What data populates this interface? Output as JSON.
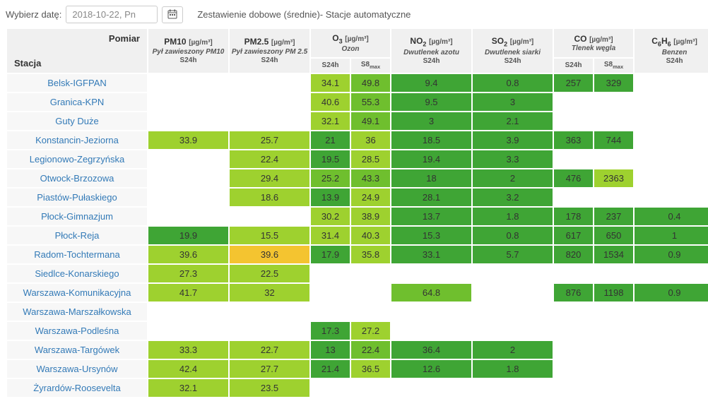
{
  "toolbar": {
    "label": "Wybierz datę:",
    "date_value": "2018-10-22, Pn",
    "calendar_icon": "calendar-icon",
    "title": "Zestawienie dobowe (średnie)- Stacje automatyczne"
  },
  "header": {
    "pomiar": "Pomiar",
    "stacja": "Stacja"
  },
  "pollutants": [
    {
      "key": "pm10",
      "name_html": "PM10",
      "unit_html": "[µg/m³]",
      "sub": "Pył zawieszony PM10",
      "aggs": [
        "S24h"
      ]
    },
    {
      "key": "pm25",
      "name_html": "PM2.5",
      "unit_html": "[µg/m³]",
      "sub": "Pył zawieszony PM 2.5",
      "aggs": [
        "S24h"
      ]
    },
    {
      "key": "o3",
      "name_html": "O<sub>3</sub>",
      "unit_html": "[µg/m³]",
      "sub": "Ozon",
      "aggs": [
        "S24h",
        "S8<sub>max</sub>"
      ]
    },
    {
      "key": "no2",
      "name_html": "NO<sub>2</sub>",
      "unit_html": "[µg/m³]",
      "sub": "Dwutlenek azotu",
      "aggs": [
        "S24h"
      ]
    },
    {
      "key": "so2",
      "name_html": "SO<sub>2</sub>",
      "unit_html": "[µg/m³]",
      "sub": "Dwutlenek siarki",
      "aggs": [
        "S24h"
      ]
    },
    {
      "key": "co",
      "name_html": "CO",
      "unit_html": "[µg/m³]",
      "sub": "Tlenek węgla",
      "aggs": [
        "S24h",
        "S8<sub>max</sub>"
      ]
    },
    {
      "key": "c6h6",
      "name_html": "C<sub>6</sub>H<sub>6</sub>",
      "unit_html": "[µg/m³]",
      "sub": "Benzen",
      "aggs": [
        "S24h"
      ]
    }
  ],
  "colors": {
    "dark_green": "#3fa535",
    "mid_green": "#6fbf2e",
    "lime": "#9ed12f",
    "orange": "#f4c430",
    "header_bg": "#f0f0f0",
    "station_bg": "#f7f7f7",
    "link": "#337ab7"
  },
  "layout": {
    "col_station_w": 200,
    "col_single_w": 115,
    "col_half_w": 57
  },
  "stations": [
    {
      "name": "Belsk-IGFPAN",
      "cells": {
        "o3": [
          {
            "v": "34.1",
            "c": "lime"
          },
          {
            "v": "49.8",
            "c": "mid_green"
          }
        ],
        "no2": [
          {
            "v": "9.4",
            "c": "dark_green"
          }
        ],
        "so2": [
          {
            "v": "0.8",
            "c": "dark_green"
          }
        ],
        "co": [
          {
            "v": "257",
            "c": "dark_green"
          },
          {
            "v": "329",
            "c": "dark_green"
          }
        ]
      }
    },
    {
      "name": "Granica-KPN",
      "cells": {
        "o3": [
          {
            "v": "40.6",
            "c": "lime"
          },
          {
            "v": "55.3",
            "c": "mid_green"
          }
        ],
        "no2": [
          {
            "v": "9.5",
            "c": "dark_green"
          }
        ],
        "so2": [
          {
            "v": "3",
            "c": "dark_green"
          }
        ]
      }
    },
    {
      "name": "Guty Duże",
      "cells": {
        "o3": [
          {
            "v": "32.1",
            "c": "lime"
          },
          {
            "v": "49.1",
            "c": "mid_green"
          }
        ],
        "no2": [
          {
            "v": "3",
            "c": "dark_green"
          }
        ],
        "so2": [
          {
            "v": "2.1",
            "c": "dark_green"
          }
        ]
      }
    },
    {
      "name": "Konstancin-Jeziorna",
      "cells": {
        "pm10": [
          {
            "v": "33.9",
            "c": "lime"
          }
        ],
        "pm25": [
          {
            "v": "25.7",
            "c": "lime"
          }
        ],
        "o3": [
          {
            "v": "21",
            "c": "dark_green"
          },
          {
            "v": "36",
            "c": "lime"
          }
        ],
        "no2": [
          {
            "v": "18.5",
            "c": "dark_green"
          }
        ],
        "so2": [
          {
            "v": "3.9",
            "c": "dark_green"
          }
        ],
        "co": [
          {
            "v": "363",
            "c": "dark_green"
          },
          {
            "v": "744",
            "c": "dark_green"
          }
        ]
      }
    },
    {
      "name": "Legionowo-Zegrzyńska",
      "cells": {
        "pm25": [
          {
            "v": "22.4",
            "c": "lime"
          }
        ],
        "o3": [
          {
            "v": "19.5",
            "c": "dark_green"
          },
          {
            "v": "28.5",
            "c": "lime"
          }
        ],
        "no2": [
          {
            "v": "19.4",
            "c": "dark_green"
          }
        ],
        "so2": [
          {
            "v": "3.3",
            "c": "dark_green"
          }
        ]
      }
    },
    {
      "name": "Otwock-Brzozowa",
      "cells": {
        "pm25": [
          {
            "v": "29.4",
            "c": "lime"
          }
        ],
        "o3": [
          {
            "v": "25.2",
            "c": "mid_green"
          },
          {
            "v": "43.3",
            "c": "mid_green"
          }
        ],
        "no2": [
          {
            "v": "18",
            "c": "dark_green"
          }
        ],
        "so2": [
          {
            "v": "2",
            "c": "dark_green"
          }
        ],
        "co": [
          {
            "v": "476",
            "c": "dark_green"
          },
          {
            "v": "2363",
            "c": "lime"
          }
        ]
      }
    },
    {
      "name": "Piastów-Pułaskiego",
      "cells": {
        "pm25": [
          {
            "v": "18.6",
            "c": "lime"
          }
        ],
        "o3": [
          {
            "v": "13.9",
            "c": "dark_green"
          },
          {
            "v": "24.9",
            "c": "lime"
          }
        ],
        "no2": [
          {
            "v": "28.1",
            "c": "dark_green"
          }
        ],
        "so2": [
          {
            "v": "3.2",
            "c": "dark_green"
          }
        ]
      }
    },
    {
      "name": "Płock-Gimnazjum",
      "cells": {
        "o3": [
          {
            "v": "30.2",
            "c": "lime"
          },
          {
            "v": "38.9",
            "c": "lime"
          }
        ],
        "no2": [
          {
            "v": "13.7",
            "c": "dark_green"
          }
        ],
        "so2": [
          {
            "v": "1.8",
            "c": "dark_green"
          }
        ],
        "co": [
          {
            "v": "178",
            "c": "dark_green"
          },
          {
            "v": "237",
            "c": "dark_green"
          }
        ],
        "c6h6": [
          {
            "v": "0.4",
            "c": "dark_green"
          }
        ]
      }
    },
    {
      "name": "Płock-Reja",
      "cells": {
        "pm10": [
          {
            "v": "19.9",
            "c": "dark_green"
          }
        ],
        "pm25": [
          {
            "v": "15.5",
            "c": "lime"
          }
        ],
        "o3": [
          {
            "v": "31.4",
            "c": "lime"
          },
          {
            "v": "40.3",
            "c": "lime"
          }
        ],
        "no2": [
          {
            "v": "15.3",
            "c": "dark_green"
          }
        ],
        "so2": [
          {
            "v": "0.8",
            "c": "dark_green"
          }
        ],
        "co": [
          {
            "v": "617",
            "c": "dark_green"
          },
          {
            "v": "650",
            "c": "dark_green"
          }
        ],
        "c6h6": [
          {
            "v": "1",
            "c": "dark_green"
          }
        ]
      }
    },
    {
      "name": "Radom-Tochtermana",
      "cells": {
        "pm10": [
          {
            "v": "39.6",
            "c": "lime"
          }
        ],
        "pm25": [
          {
            "v": "39.6",
            "c": "orange"
          }
        ],
        "o3": [
          {
            "v": "17.9",
            "c": "dark_green"
          },
          {
            "v": "35.8",
            "c": "lime"
          }
        ],
        "no2": [
          {
            "v": "33.1",
            "c": "dark_green"
          }
        ],
        "so2": [
          {
            "v": "5.7",
            "c": "dark_green"
          }
        ],
        "co": [
          {
            "v": "820",
            "c": "dark_green"
          },
          {
            "v": "1534",
            "c": "dark_green"
          }
        ],
        "c6h6": [
          {
            "v": "0.9",
            "c": "dark_green"
          }
        ]
      }
    },
    {
      "name": "Siedlce-Konarskiego",
      "cells": {
        "pm10": [
          {
            "v": "27.3",
            "c": "lime"
          }
        ],
        "pm25": [
          {
            "v": "22.5",
            "c": "lime"
          }
        ]
      }
    },
    {
      "name": "Warszawa-Komunikacyjna",
      "cells": {
        "pm10": [
          {
            "v": "41.7",
            "c": "lime"
          }
        ],
        "pm25": [
          {
            "v": "32",
            "c": "lime"
          }
        ],
        "no2": [
          {
            "v": "64.8",
            "c": "mid_green"
          }
        ],
        "co": [
          {
            "v": "876",
            "c": "dark_green"
          },
          {
            "v": "1198",
            "c": "dark_green"
          }
        ],
        "c6h6": [
          {
            "v": "0.9",
            "c": "dark_green"
          }
        ]
      }
    },
    {
      "name": "Warszawa-Marszałkowska",
      "cells": {}
    },
    {
      "name": "Warszawa-Podleśna",
      "cells": {
        "o3": [
          {
            "v": "17.3",
            "c": "dark_green"
          },
          {
            "v": "27.2",
            "c": "lime"
          }
        ]
      }
    },
    {
      "name": "Warszawa-Targówek",
      "cells": {
        "pm10": [
          {
            "v": "33.3",
            "c": "lime"
          }
        ],
        "pm25": [
          {
            "v": "22.7",
            "c": "lime"
          }
        ],
        "o3": [
          {
            "v": "13",
            "c": "dark_green"
          },
          {
            "v": "22.4",
            "c": "mid_green"
          }
        ],
        "no2": [
          {
            "v": "36.4",
            "c": "dark_green"
          }
        ],
        "so2": [
          {
            "v": "2",
            "c": "dark_green"
          }
        ]
      }
    },
    {
      "name": "Warszawa-Ursynów",
      "cells": {
        "pm10": [
          {
            "v": "42.4",
            "c": "lime"
          }
        ],
        "pm25": [
          {
            "v": "27.7",
            "c": "lime"
          }
        ],
        "o3": [
          {
            "v": "21.4",
            "c": "dark_green"
          },
          {
            "v": "36.5",
            "c": "lime"
          }
        ],
        "no2": [
          {
            "v": "12.6",
            "c": "dark_green"
          }
        ],
        "so2": [
          {
            "v": "1.8",
            "c": "dark_green"
          }
        ]
      }
    },
    {
      "name": "Żyrardów-Roosevelta",
      "cells": {
        "pm10": [
          {
            "v": "32.1",
            "c": "lime"
          }
        ],
        "pm25": [
          {
            "v": "23.5",
            "c": "lime"
          }
        ]
      }
    }
  ]
}
